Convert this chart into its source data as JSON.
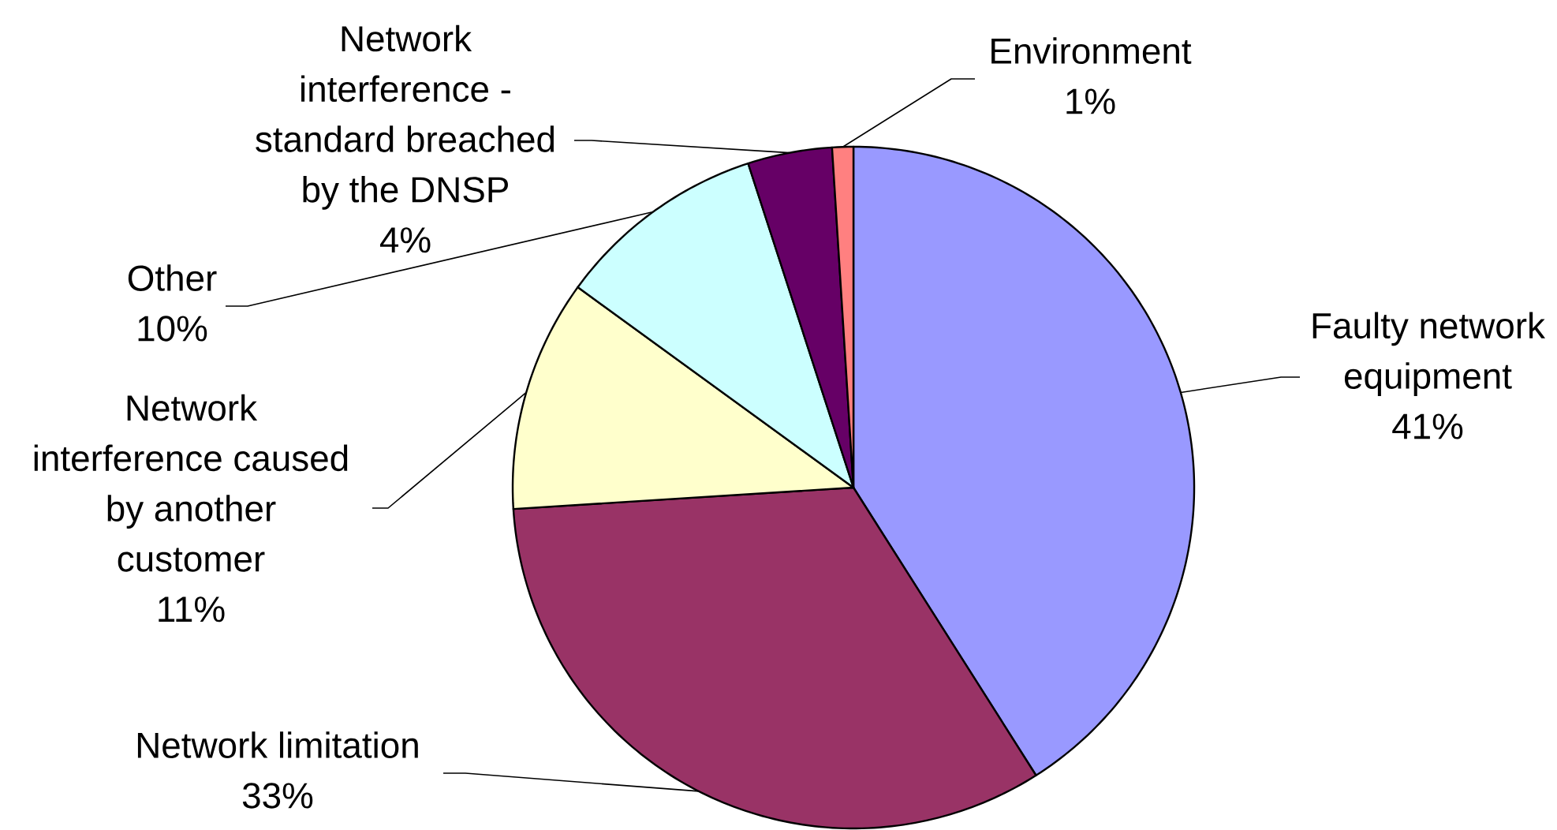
{
  "chart_data": {
    "type": "pie",
    "categories": [
      "Faulty network equipment",
      "Network limitation",
      "Network interference caused by another customer",
      "Other",
      "Network interference - standard breached by the DNSP",
      "Environment"
    ],
    "values": [
      41,
      33,
      11,
      10,
      4,
      1
    ],
    "colors": [
      "#9999ff",
      "#993366",
      "#ffffcc",
      "#ccffff",
      "#660066",
      "#ff8080"
    ],
    "value_labels": [
      "41%",
      "33%",
      "11%",
      "10%",
      "4%",
      "1%"
    ]
  }
}
